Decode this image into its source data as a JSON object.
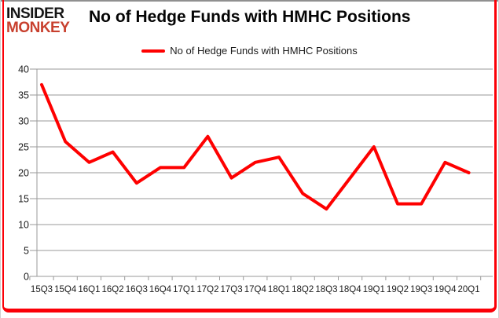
{
  "logo": {
    "line1": "INSIDER",
    "line2": "MONKEY"
  },
  "header": {
    "title": "No of Hedge Funds with HMHC Positions"
  },
  "legend": {
    "label": "No of Hedge Funds with HMHC Positions"
  },
  "colors": {
    "line": "#fe0000",
    "border": "#fb0007",
    "logo_red": "#c8402e",
    "grid": "#9a9a9a",
    "axis": "#9a9a9a",
    "text": "#1a1a1a",
    "top_line": "#909090"
  },
  "chart_data": {
    "type": "line",
    "title": "No of Hedge Funds with HMHC Positions",
    "categories": [
      "15Q3",
      "15Q4",
      "16Q1",
      "16Q2",
      "16Q3",
      "16Q4",
      "17Q1",
      "17Q2",
      "17Q3",
      "17Q4",
      "18Q1",
      "18Q2",
      "18Q3",
      "18Q4",
      "19Q1",
      "19Q2",
      "19Q3",
      "19Q4",
      "20Q1"
    ],
    "series": [
      {
        "name": "No of Hedge Funds with HMHC Positions",
        "values": [
          37,
          26,
          22,
          24,
          18,
          21,
          21,
          27,
          19,
          22,
          23,
          16,
          13,
          19,
          25,
          14,
          14,
          22,
          20
        ]
      }
    ],
    "xlabel": "",
    "ylabel": "",
    "ylim": [
      0,
      40
    ],
    "yticks": [
      0,
      5,
      10,
      15,
      20,
      25,
      30,
      35,
      40
    ],
    "grid": true,
    "legend_position": "top"
  }
}
